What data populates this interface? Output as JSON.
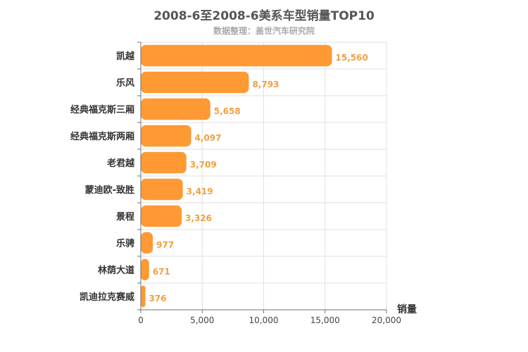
{
  "chart_data": {
    "type": "bar",
    "orientation": "horizontal",
    "title": "2008-6至2008-6美系车型销量TOP10",
    "subtitle": "数据整理：盖世汽车研究院",
    "xlabel": "销量",
    "ylabel": "",
    "xlim": [
      0,
      20000
    ],
    "x_ticks": [
      "0",
      "5,000",
      "10,000",
      "15,000",
      "20,000"
    ],
    "grid": true,
    "bar_color": "#ff9933",
    "categories": [
      "凯越",
      "乐风",
      "经典福克斯三厢",
      "经典福克斯两厢",
      "老君越",
      "蒙迪欧-致胜",
      "景程",
      "乐骋",
      "林荫大道",
      "凯迪拉克赛威"
    ],
    "values": [
      15560,
      8793,
      5658,
      4097,
      3709,
      3419,
      3326,
      977,
      671,
      376
    ],
    "value_labels": [
      "15,560",
      "8,793",
      "5,658",
      "4,097",
      "3,709",
      "3,419",
      "3,326",
      "977",
      "671",
      "376"
    ]
  }
}
